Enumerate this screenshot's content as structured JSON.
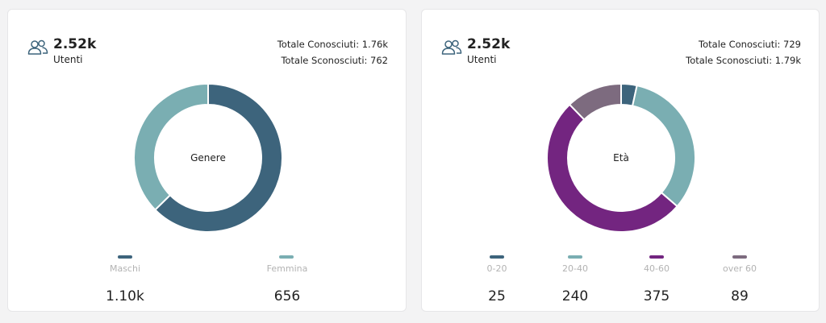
{
  "cards": [
    {
      "users_total": "2.52k",
      "users_label": "Utenti",
      "known": "Totale Conosciuti: 1.76k",
      "unknown": "Totale Sconosciuti: 762",
      "center_label": "Genere",
      "chart_data": {
        "type": "pie",
        "title": "Genere",
        "categories": [
          "Maschi",
          "Femmina"
        ],
        "values": [
          1100,
          656
        ],
        "value_labels": [
          "1.10k",
          "656"
        ],
        "colors": [
          "#3d647c",
          "#7aaeb2"
        ]
      }
    },
    {
      "users_total": "2.52k",
      "users_label": "Utenti",
      "known": "Totale Conosciuti: 729",
      "unknown": "Totale Sconosciuti: 1.79k",
      "center_label": "Età",
      "chart_data": {
        "type": "pie",
        "title": "Età",
        "categories": [
          "0-20",
          "20-40",
          "40-60",
          "over 60"
        ],
        "values": [
          25,
          240,
          375,
          89
        ],
        "value_labels": [
          "25",
          "240",
          "375",
          "89"
        ],
        "colors": [
          "#3d647c",
          "#7aaeb2",
          "#732580",
          "#7d6b7f"
        ]
      }
    }
  ]
}
